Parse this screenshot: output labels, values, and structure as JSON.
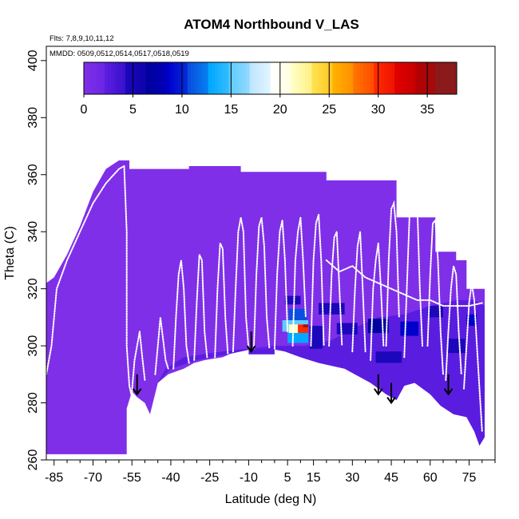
{
  "chart_data": {
    "type": "heatmap",
    "title": "ATOM4 Northbound V_LAS",
    "flights_note": "Flts: 7,8,9,10,11,12",
    "dates_note": "MMDD: 0509,0512,0514,0517,0518,0519",
    "xlabel": "Latitude (deg N)",
    "ylabel": "Theta (C)",
    "xlim": [
      -88,
      85
    ],
    "ylim": [
      260,
      405
    ],
    "x_ticks": [
      -85,
      -70,
      -55,
      -40,
      -25,
      -10,
      5,
      15,
      30,
      45,
      60,
      75
    ],
    "y_ticks": [
      260,
      280,
      300,
      320,
      340,
      360,
      380,
      400
    ],
    "colorbar": {
      "range": [
        0,
        38
      ],
      "ticks": [
        0,
        5,
        10,
        15,
        20,
        25,
        30,
        35
      ],
      "colors": [
        "#7f2fe8",
        "#5a1de0",
        "#1c07bb",
        "#00009e",
        "#0000cd",
        "#0a4fe0",
        "#00a9ff",
        "#5ecbff",
        "#bfe6ff",
        "#ffffff",
        "#ffffc6",
        "#ffe24d",
        "#ffb000",
        "#ff7400",
        "#ff2a00",
        "#e00000",
        "#b40000",
        "#8b1a1a"
      ]
    },
    "background_value": 1,
    "outer_region": [
      [
        -88,
        262
      ],
      [
        -88,
        322
      ],
      [
        -85,
        324
      ],
      [
        -80,
        332
      ],
      [
        -75,
        342
      ],
      [
        -70,
        354
      ],
      [
        -65,
        362
      ],
      [
        -60,
        365
      ],
      [
        -56,
        365
      ],
      [
        -56,
        362
      ],
      [
        -33,
        362
      ],
      [
        -33,
        363
      ],
      [
        -13,
        363
      ],
      [
        -13,
        361
      ],
      [
        20,
        361
      ],
      [
        20,
        358
      ],
      [
        47,
        358
      ],
      [
        47,
        345
      ],
      [
        62,
        345
      ],
      [
        62,
        333
      ],
      [
        70,
        333
      ],
      [
        70,
        330
      ],
      [
        74,
        330
      ],
      [
        74,
        320
      ],
      [
        81,
        320
      ],
      [
        81,
        268
      ],
      [
        79,
        265
      ],
      [
        77,
        270
      ],
      [
        74,
        275
      ],
      [
        69,
        276
      ],
      [
        64,
        279
      ],
      [
        60,
        283
      ],
      [
        54,
        287
      ],
      [
        50,
        286
      ],
      [
        47,
        281
      ],
      [
        43,
        283
      ],
      [
        37,
        287
      ],
      [
        27,
        292
      ],
      [
        17,
        294
      ],
      [
        10,
        296
      ],
      [
        4,
        298
      ],
      [
        -2,
        299
      ],
      [
        -8,
        299
      ],
      [
        -15,
        298
      ],
      [
        -20,
        296
      ],
      [
        -27,
        295
      ],
      [
        -31,
        294
      ],
      [
        -35,
        292
      ],
      [
        -41,
        290
      ],
      [
        -45,
        287
      ],
      [
        -48,
        276
      ],
      [
        -50,
        280
      ],
      [
        -53,
        282
      ],
      [
        -55,
        284
      ],
      [
        -57,
        278
      ],
      [
        -57,
        262
      ]
    ],
    "inner_dark_region": [
      [
        -45,
        287
      ],
      [
        -40,
        292
      ],
      [
        -30,
        295
      ],
      [
        -18,
        297
      ],
      [
        -8,
        299
      ],
      [
        0,
        299
      ],
      [
        4,
        298
      ],
      [
        10,
        296
      ],
      [
        17,
        294
      ],
      [
        27,
        292
      ],
      [
        37,
        287
      ],
      [
        43,
        283
      ],
      [
        47,
        281
      ],
      [
        50,
        286
      ],
      [
        54,
        287
      ],
      [
        60,
        283
      ],
      [
        64,
        279
      ],
      [
        69,
        276
      ],
      [
        74,
        275
      ],
      [
        77,
        270
      ],
      [
        79,
        265
      ],
      [
        81,
        268
      ],
      [
        81,
        314
      ],
      [
        77,
        316
      ],
      [
        70,
        316
      ],
      [
        60,
        314
      ],
      [
        50,
        311
      ],
      [
        40,
        310
      ],
      [
        30,
        306
      ],
      [
        22,
        302
      ],
      [
        12,
        300
      ],
      [
        0,
        300
      ],
      [
        -20,
        298
      ],
      [
        -35,
        296
      ],
      [
        -42,
        292
      ]
    ],
    "cells": [
      {
        "x": 8,
        "y": 307,
        "w": 10,
        "h": 4,
        "v": 15
      },
      {
        "x": 9,
        "y": 303,
        "w": 8,
        "h": 4,
        "v": 13
      },
      {
        "x": 9,
        "y": 311,
        "w": 7,
        "h": 4,
        "v": 12
      },
      {
        "x": 9,
        "y": 306,
        "w": 7,
        "h": 3,
        "v": 22
      },
      {
        "x": 11,
        "y": 306,
        "w": 4,
        "h": 3,
        "v": 30
      },
      {
        "x": 12,
        "y": 307,
        "w": 2,
        "h": 1,
        "v": 36
      },
      {
        "x": 7,
        "y": 316,
        "w": 6,
        "h": 3,
        "v": 6
      },
      {
        "x": 16,
        "y": 303,
        "w": 5,
        "h": 8,
        "v": 6
      },
      {
        "x": 22,
        "y": 313,
        "w": 10,
        "h": 4,
        "v": 5
      },
      {
        "x": 28,
        "y": 306,
        "w": 8,
        "h": 4,
        "v": 6
      },
      {
        "x": 40,
        "y": 307,
        "w": 8,
        "h": 5,
        "v": 7
      },
      {
        "x": 52,
        "y": 306,
        "w": 7,
        "h": 5,
        "v": 9
      },
      {
        "x": 62,
        "y": 312,
        "w": 6,
        "h": 4,
        "v": 6
      },
      {
        "x": 70,
        "y": 300,
        "w": 7,
        "h": 5,
        "v": 5
      },
      {
        "x": 76,
        "y": 309,
        "w": 4,
        "h": 4,
        "v": 10
      },
      {
        "x": -5,
        "y": 298,
        "w": 10,
        "h": 2,
        "v": 3
      },
      {
        "x": 44,
        "y": 296,
        "w": 10,
        "h": 4,
        "v": 6
      }
    ],
    "arrows": [
      {
        "lat": -53,
        "from": 290,
        "to": 283
      },
      {
        "lat": -9,
        "from": 305,
        "to": 298
      },
      {
        "lat": 40,
        "from": 290,
        "to": 283
      },
      {
        "lat": 45,
        "from": 287,
        "to": 280
      },
      {
        "lat": 67,
        "from": 290,
        "to": 283
      }
    ],
    "flight_tracks": [
      [
        [
          -88,
          290
        ],
        [
          -86,
          300
        ],
        [
          -84,
          320
        ],
        [
          -80,
          330
        ],
        [
          -75,
          340
        ],
        [
          -70,
          350
        ],
        [
          -65,
          357
        ],
        [
          -60,
          362
        ],
        [
          -58,
          363
        ]
      ],
      [
        [
          -58,
          363
        ],
        [
          -57,
          340
        ],
        [
          -57,
          300
        ],
        [
          -56,
          286
        ],
        [
          -55,
          282
        ]
      ],
      [
        [
          -55,
          284
        ],
        [
          -54,
          295
        ],
        [
          -52,
          305
        ],
        [
          -51,
          296
        ],
        [
          -50,
          288
        ]
      ],
      [
        [
          -46,
          290
        ],
        [
          -45,
          300
        ],
        [
          -44,
          310
        ],
        [
          -42,
          295
        ],
        [
          -41,
          292
        ]
      ],
      [
        [
          -39,
          292
        ],
        [
          -38,
          310
        ],
        [
          -37,
          325
        ],
        [
          -36,
          330
        ],
        [
          -35,
          320
        ],
        [
          -34,
          300
        ],
        [
          -33,
          294
        ]
      ],
      [
        [
          -31,
          295
        ],
        [
          -30,
          315
        ],
        [
          -29,
          332
        ],
        [
          -28,
          330
        ],
        [
          -27,
          305
        ],
        [
          -26,
          296
        ]
      ],
      [
        [
          -23,
          296
        ],
        [
          -22,
          320
        ],
        [
          -21,
          336
        ],
        [
          -20,
          334
        ],
        [
          -19,
          310
        ],
        [
          -18,
          297
        ]
      ],
      [
        [
          -16,
          298
        ],
        [
          -15,
          320
        ],
        [
          -14,
          340
        ],
        [
          -13,
          345
        ],
        [
          -12,
          340
        ],
        [
          -11,
          310
        ],
        [
          -10,
          299
        ]
      ],
      [
        [
          -8,
          299
        ],
        [
          -7,
          325
        ],
        [
          -6,
          342
        ],
        [
          -5,
          345
        ],
        [
          -4,
          335
        ],
        [
          -3,
          310
        ],
        [
          -2,
          299
        ]
      ],
      [
        [
          0,
          299
        ],
        [
          1,
          325
        ],
        [
          2,
          340
        ],
        [
          3,
          344
        ],
        [
          4,
          330
        ],
        [
          5,
          305
        ]
      ],
      [
        [
          7,
          300
        ],
        [
          8,
          330
        ],
        [
          9,
          340
        ],
        [
          10,
          345
        ],
        [
          11,
          330
        ],
        [
          12,
          310
        ]
      ],
      [
        [
          14,
          300
        ],
        [
          15,
          330
        ],
        [
          16,
          343
        ],
        [
          17,
          346
        ],
        [
          18,
          330
        ],
        [
          19,
          300
        ]
      ],
      [
        [
          21,
          300
        ],
        [
          22,
          325
        ],
        [
          23,
          338
        ],
        [
          24,
          340
        ],
        [
          25,
          320
        ],
        [
          26,
          300
        ]
      ],
      [
        [
          30,
          298
        ],
        [
          31,
          320
        ],
        [
          32,
          335
        ],
        [
          33,
          340
        ],
        [
          34,
          320
        ],
        [
          35,
          298
        ]
      ],
      [
        [
          37,
          295
        ],
        [
          38,
          320
        ],
        [
          39,
          330
        ],
        [
          40,
          336
        ],
        [
          41,
          320
        ],
        [
          42,
          300
        ]
      ],
      [
        [
          43,
          300
        ],
        [
          44,
          330
        ],
        [
          45,
          348
        ],
        [
          46,
          350
        ],
        [
          47,
          340
        ],
        [
          48,
          310
        ]
      ],
      [
        [
          50,
          296
        ],
        [
          51,
          320
        ],
        [
          52,
          345
        ],
        [
          53,
          355
        ],
        [
          54,
          356
        ],
        [
          55,
          350
        ],
        [
          56,
          320
        ],
        [
          57,
          300
        ]
      ],
      [
        [
          59,
          300
        ],
        [
          60,
          325
        ],
        [
          61,
          343
        ],
        [
          62,
          344
        ],
        [
          63,
          330
        ],
        [
          64,
          305
        ],
        [
          65,
          290
        ]
      ],
      [
        [
          66,
          288
        ],
        [
          67,
          305
        ],
        [
          68,
          320
        ],
        [
          69,
          328
        ],
        [
          70,
          325
        ],
        [
          71,
          305
        ],
        [
          72,
          290
        ]
      ],
      [
        [
          73,
          285
        ],
        [
          74,
          300
        ],
        [
          75,
          315
        ],
        [
          76,
          322
        ],
        [
          77,
          316
        ],
        [
          78,
          300
        ],
        [
          79,
          285
        ],
        [
          80,
          270
        ]
      ],
      [
        [
          20,
          330
        ],
        [
          25,
          326
        ],
        [
          30,
          328
        ],
        [
          35,
          324
        ],
        [
          40,
          322
        ],
        [
          45,
          320
        ],
        [
          50,
          318
        ],
        [
          55,
          316
        ],
        [
          60,
          316
        ],
        [
          65,
          314
        ],
        [
          70,
          314
        ],
        [
          75,
          314
        ],
        [
          80,
          315
        ]
      ]
    ]
  }
}
